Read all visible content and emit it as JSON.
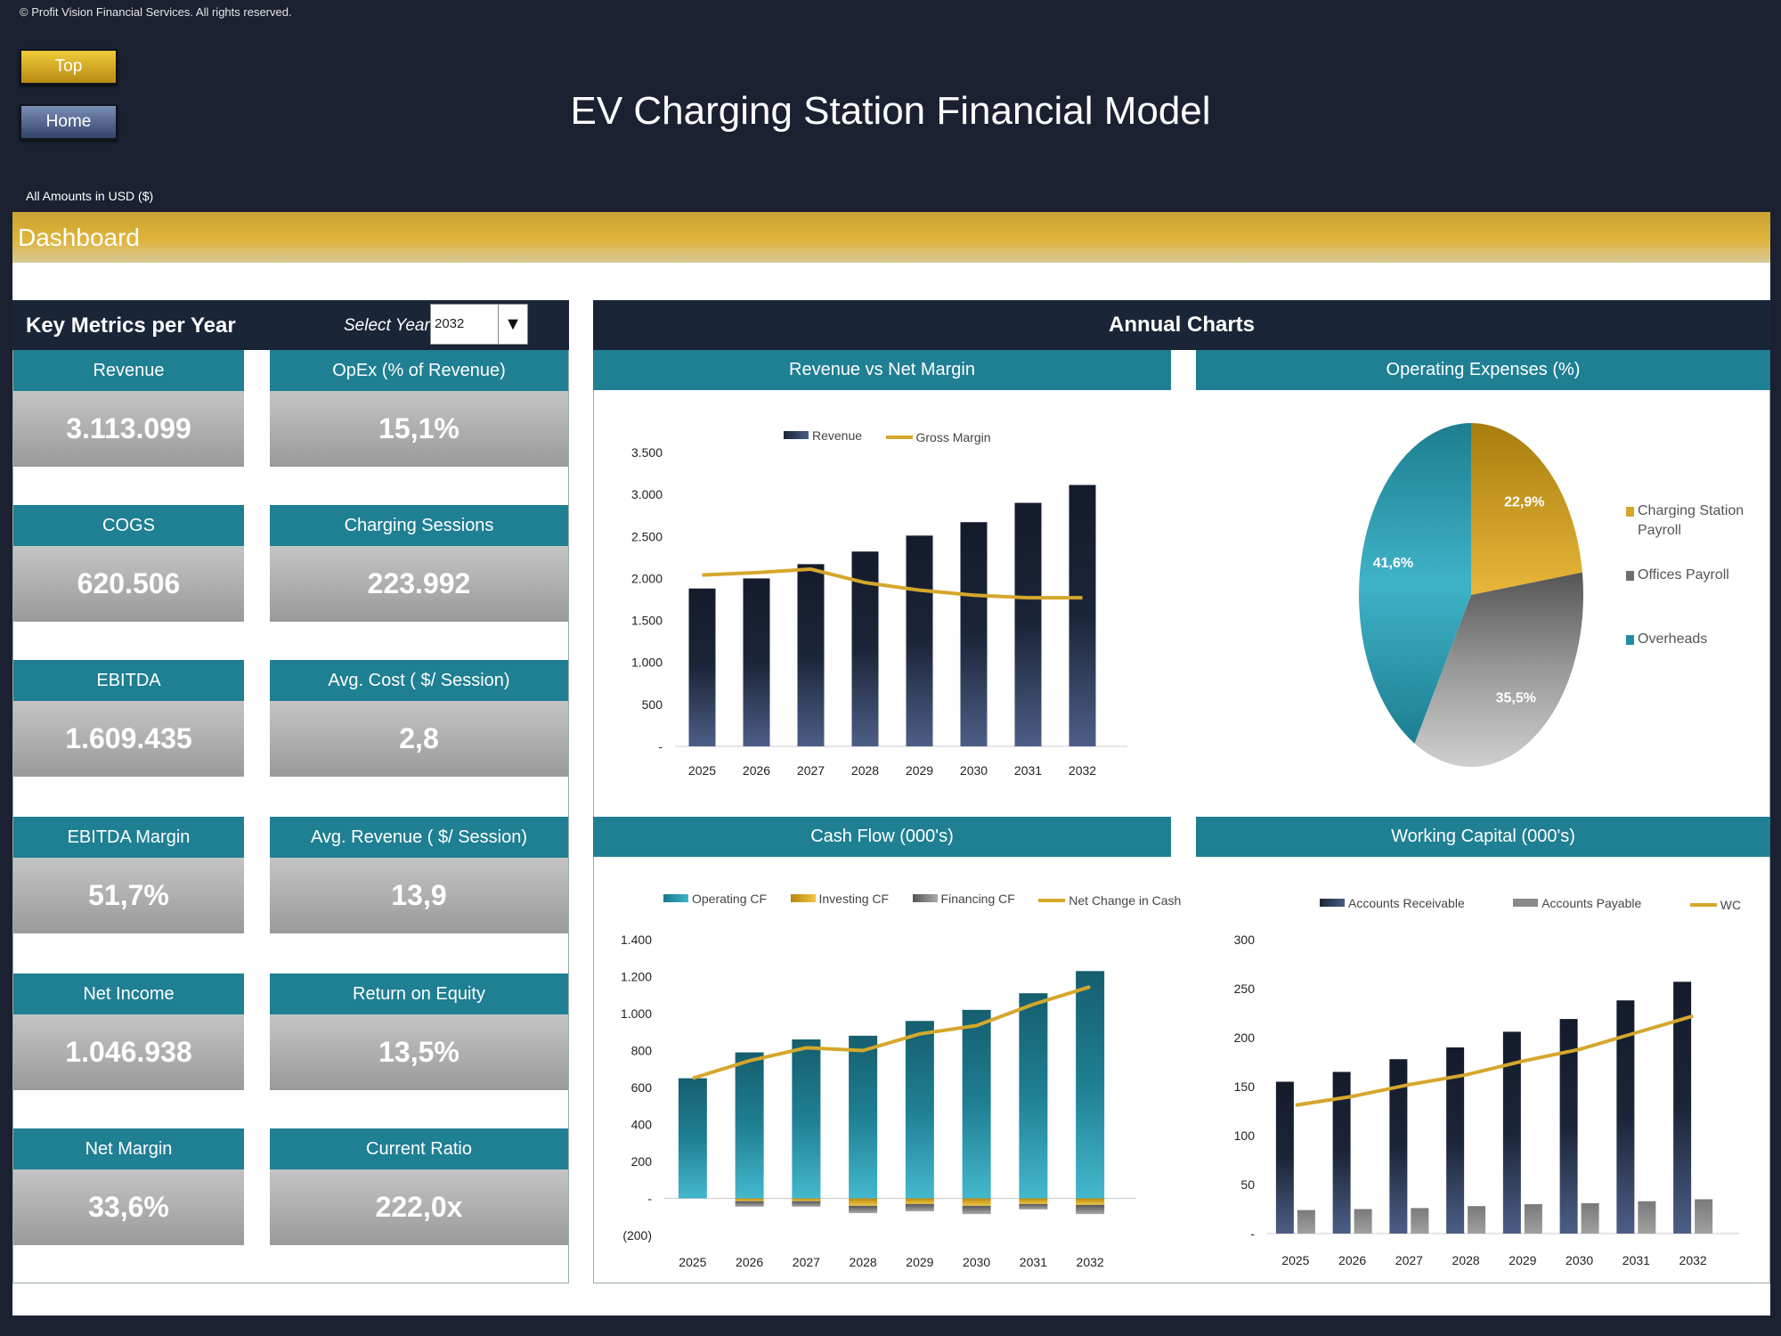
{
  "header": {
    "copyright": "© Profit Vision Financial Services. All rights reserved.",
    "top_button": "Top",
    "home_button": "Home",
    "title": "EV Charging Station Financial Model",
    "amounts_note": "All Amounts in  USD ($)",
    "section": "Dashboard"
  },
  "key_metrics": {
    "title": "Key Metrics per Year",
    "select_label": "Select Year",
    "selected_year": "2032",
    "cards": [
      {
        "label": "Revenue",
        "value": "3.113.099"
      },
      {
        "label": "OpEx (% of Revenue)",
        "value": "15,1%"
      },
      {
        "label": "COGS",
        "value": "620.506"
      },
      {
        "label": "Charging Sessions",
        "value": "223.992"
      },
      {
        "label": "EBITDA",
        "value": "1.609.435"
      },
      {
        "label": "Avg. Cost ( $/ Session)",
        "value": "2,8"
      },
      {
        "label": "EBITDA Margin",
        "value": "51,7%"
      },
      {
        "label": "Avg. Revenue ( $/ Session)",
        "value": "13,9"
      },
      {
        "label": "Net Income",
        "value": "1.046.938"
      },
      {
        "label": "Return on Equity",
        "value": "13,5%"
      },
      {
        "label": "Net Margin",
        "value": "33,6%"
      },
      {
        "label": "Current Ratio",
        "value": "222,0x"
      }
    ]
  },
  "annual": {
    "title": "Annual Charts"
  },
  "colors": {
    "navy": "#1b2538",
    "teal": "#1f7f93",
    "gold": "#d4a72c",
    "grey": "#8a8a8a"
  },
  "chart_data": [
    {
      "type": "bar",
      "title": "Revenue vs Net Margin",
      "categories": [
        "2025",
        "2026",
        "2027",
        "2028",
        "2029",
        "2030",
        "2031",
        "2032"
      ],
      "series": [
        {
          "name": "Revenue",
          "values": [
            1880,
            2000,
            2170,
            2320,
            2510,
            2670,
            2900,
            3113
          ]
        },
        {
          "name": "Gross Margin",
          "type": "line",
          "values": [
            2040,
            2070,
            2110,
            1950,
            1860,
            1800,
            1770,
            1770
          ]
        }
      ],
      "yticks": [
        "-",
        "500",
        "1.000",
        "1.500",
        "2.000",
        "2.500",
        "3.000",
        "3.500"
      ],
      "ylim": [
        0,
        3500
      ],
      "legend": "top"
    },
    {
      "type": "pie",
      "title": "Operating Expenses (%)",
      "slices": [
        {
          "name": "Charging Station Payroll",
          "value": 22.9,
          "label": "22,9%"
        },
        {
          "name": "Offices Payroll",
          "value": 35.5,
          "label": "35,5%"
        },
        {
          "name": "Overheads",
          "value": 41.6,
          "label": "41,6%"
        }
      ],
      "legend": "right"
    },
    {
      "type": "bar",
      "title": "Cash Flow (000's)",
      "categories": [
        "2025",
        "2026",
        "2027",
        "2028",
        "2029",
        "2030",
        "2031",
        "2032"
      ],
      "series": [
        {
          "name": "Operating CF",
          "values": [
            650,
            790,
            860,
            880,
            960,
            1020,
            1110,
            1230
          ]
        },
        {
          "name": "Investing CF",
          "values": [
            0,
            -15,
            -15,
            -40,
            -30,
            -40,
            -30,
            -35
          ]
        },
        {
          "name": "Financing CF",
          "values": [
            0,
            -30,
            -30,
            -40,
            -40,
            -45,
            -30,
            -50
          ]
        },
        {
          "name": "Net Change in Cash",
          "type": "line",
          "values": [
            650,
            745,
            815,
            800,
            890,
            935,
            1050,
            1145
          ]
        }
      ],
      "yticks": [
        "(200)",
        "-",
        "200",
        "400",
        "600",
        "800",
        "1.000",
        "1.200",
        "1.400"
      ],
      "ylim": [
        -200,
        1400
      ],
      "legend": "top"
    },
    {
      "type": "bar",
      "title": "Working Capital (000's)",
      "categories": [
        "2025",
        "2026",
        "2027",
        "2028",
        "2029",
        "2030",
        "2031",
        "2032"
      ],
      "series": [
        {
          "name": "Accounts Receivable",
          "values": [
            155,
            165,
            178,
            190,
            206,
            219,
            238,
            257
          ]
        },
        {
          "name": "Accounts Payable",
          "values": [
            24,
            25,
            26,
            28,
            30,
            31,
            33,
            35
          ]
        },
        {
          "name": "WC",
          "type": "line",
          "values": [
            131,
            140,
            152,
            162,
            176,
            188,
            205,
            222
          ]
        }
      ],
      "yticks": [
        "-",
        "50",
        "100",
        "150",
        "200",
        "250",
        "300"
      ],
      "ylim": [
        0,
        300
      ],
      "legend": "top"
    }
  ]
}
